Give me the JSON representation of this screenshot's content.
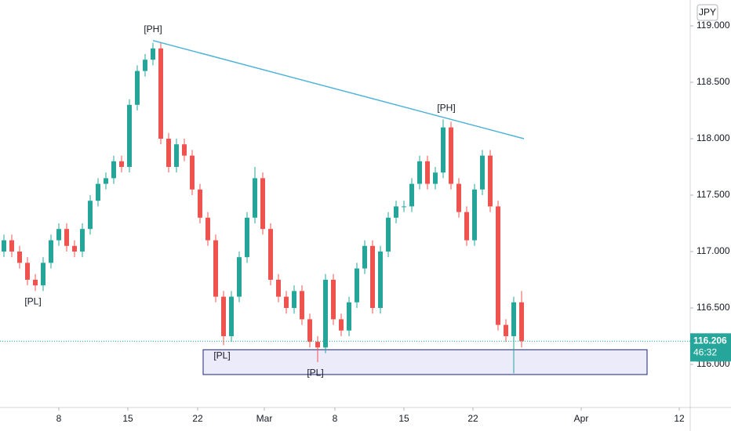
{
  "chart_data": {
    "type": "candlestick",
    "currency": "JPY",
    "xlim": [
      -0.5,
      87.5
    ],
    "ylim": [
      115.618,
      119.229
    ],
    "xticks": [
      {
        "value": 7,
        "label": "8"
      },
      {
        "value": 15.8,
        "label": "15"
      },
      {
        "value": 24.7,
        "label": "22"
      },
      {
        "value": 33.2,
        "label": "Mar"
      },
      {
        "value": 42.2,
        "label": "8"
      },
      {
        "value": 51,
        "label": "15"
      },
      {
        "value": 59.8,
        "label": "22"
      },
      {
        "value": 73.6,
        "label": "Apr"
      },
      {
        "value": 86.1,
        "label": "12"
      }
    ],
    "yticks": [
      {
        "value": 116,
        "label": "116.000"
      },
      {
        "value": 116.5,
        "label": "116.500"
      },
      {
        "value": 117,
        "label": "117.000"
      },
      {
        "value": 117.5,
        "label": "117.500"
      },
      {
        "value": 118,
        "label": "118.000"
      },
      {
        "value": 118.5,
        "label": "118.500"
      },
      {
        "value": 119,
        "label": "119.000"
      }
    ],
    "up_color": "#26a69a",
    "down_color": "#ef5350",
    "open": [
      117.0,
      117.1,
      117.0,
      116.9,
      116.75,
      116.7,
      116.9,
      117.1,
      117.2,
      117.05,
      117.0,
      117.2,
      117.45,
      117.6,
      117.65,
      117.8,
      117.75,
      118.3,
      118.6,
      118.7,
      118.8,
      118.0,
      117.75,
      117.95,
      117.85,
      117.55,
      117.3,
      117.1,
      116.6,
      116.25,
      116.6,
      116.95,
      117.3,
      117.65,
      117.2,
      116.75,
      116.6,
      116.5,
      116.65,
      116.4,
      116.2,
      116.15,
      116.75,
      116.4,
      116.3,
      116.55,
      116.85,
      117.05,
      116.5,
      117.0,
      117.3,
      117.4,
      117.4,
      117.6,
      117.8,
      117.6,
      117.7,
      118.1,
      117.6,
      117.35,
      117.1,
      117.55,
      117.85,
      117.4,
      116.35,
      116.25,
      116.55
    ],
    "high": [
      117.15,
      117.15,
      117.05,
      116.95,
      116.8,
      116.95,
      117.15,
      117.25,
      117.25,
      117.1,
      117.25,
      117.5,
      117.65,
      117.7,
      117.85,
      117.85,
      118.35,
      118.65,
      118.75,
      118.85,
      118.85,
      118.05,
      118.0,
      118.0,
      117.9,
      117.6,
      117.35,
      117.15,
      116.65,
      116.65,
      117.0,
      117.35,
      117.75,
      117.7,
      117.25,
      116.8,
      116.65,
      116.7,
      116.7,
      116.45,
      116.25,
      116.8,
      116.8,
      116.45,
      116.6,
      116.9,
      117.1,
      117.1,
      117.05,
      117.35,
      117.45,
      117.45,
      117.65,
      117.85,
      117.85,
      117.75,
      118.17,
      118.15,
      117.65,
      117.4,
      117.6,
      117.9,
      117.9,
      117.45,
      116.4,
      116.6,
      116.65
    ],
    "low": [
      116.95,
      116.95,
      116.85,
      116.7,
      116.65,
      116.65,
      116.85,
      117.05,
      117.0,
      116.95,
      116.95,
      117.15,
      117.4,
      117.55,
      117.6,
      117.7,
      117.7,
      118.25,
      118.55,
      118.65,
      117.95,
      117.7,
      117.7,
      117.8,
      117.5,
      117.25,
      117.05,
      116.55,
      116.17,
      116.2,
      116.55,
      116.9,
      117.25,
      117.15,
      116.7,
      116.55,
      116.45,
      116.45,
      116.35,
      116.15,
      116.02,
      116.1,
      116.35,
      116.25,
      116.25,
      116.5,
      116.8,
      116.45,
      116.45,
      116.95,
      117.25,
      117.35,
      117.35,
      117.55,
      117.55,
      117.55,
      117.65,
      117.55,
      117.3,
      117.05,
      117.05,
      117.5,
      117.35,
      116.3,
      116.2,
      115.92,
      116.15
    ],
    "close": [
      117.1,
      117.0,
      116.9,
      116.75,
      116.7,
      116.9,
      117.1,
      117.2,
      117.05,
      117.0,
      117.2,
      117.45,
      117.6,
      117.65,
      117.8,
      117.75,
      118.3,
      118.6,
      118.7,
      118.8,
      118.0,
      117.75,
      117.95,
      117.85,
      117.55,
      117.3,
      117.1,
      116.6,
      116.25,
      116.6,
      116.95,
      117.3,
      117.65,
      117.2,
      116.75,
      116.6,
      116.5,
      116.65,
      116.4,
      116.2,
      116.15,
      116.75,
      116.4,
      116.3,
      116.55,
      116.85,
      117.05,
      116.5,
      117.0,
      117.3,
      117.4,
      117.4,
      117.6,
      117.8,
      117.6,
      117.7,
      118.1,
      117.6,
      117.35,
      117.1,
      117.55,
      117.85,
      117.4,
      116.35,
      116.25,
      116.55,
      116.206
    ],
    "last_price": 116.206,
    "countdown": "46:32",
    "trendline": {
      "x": [
        19,
        66.3
      ],
      "y": [
        118.87,
        118.0
      ],
      "color": "#4fb3d9"
    },
    "zone": {
      "x": [
        25.4,
        82
      ],
      "y": [
        116.13,
        115.91
      ]
    },
    "pivots": [
      {
        "label": "[PL]",
        "x": 3.7,
        "y": 116.65,
        "kind": "low"
      },
      {
        "label": "[PH]",
        "x": 19,
        "y": 118.87,
        "kind": "high"
      },
      {
        "label": "[PL]",
        "x": 27.8,
        "y": 116.17,
        "kind": "low"
      },
      {
        "label": "[PL]",
        "x": 39.7,
        "y": 116.02,
        "kind": "low"
      },
      {
        "label": "[PH]",
        "x": 56.4,
        "y": 118.17,
        "kind": "high"
      }
    ]
  }
}
